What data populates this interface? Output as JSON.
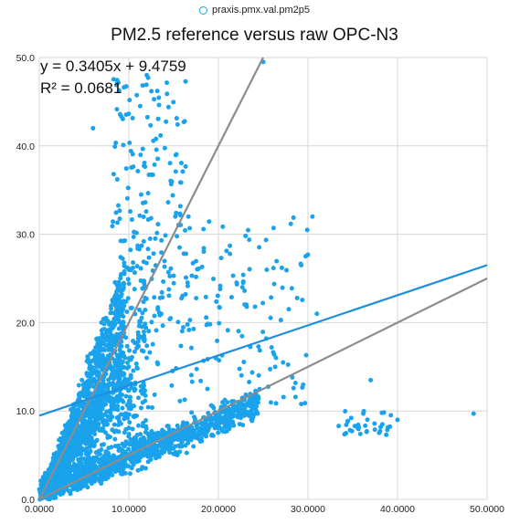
{
  "legend": {
    "label": "praxis.pmx.val.pm2p5"
  },
  "colors": {
    "points": "#1aa3ec",
    "fit_line": "#1e8fe0",
    "reference_lines": "#8c8c8c",
    "grid": "#d6d6d6"
  },
  "chart_data": {
    "type": "scatter",
    "title": "PM2.5 reference versus raw OPC-N3",
    "xlabel": "",
    "ylabel": "",
    "xlim": [
      0,
      50
    ],
    "ylim": [
      0,
      50
    ],
    "x_ticks": [
      "0.0000",
      "10.0000",
      "20.0000",
      "30.0000",
      "40.0000",
      "50.0000"
    ],
    "y_ticks": [
      "0.0",
      "10.0",
      "20.0",
      "30.0",
      "40.0",
      "50.0"
    ],
    "grid": true,
    "legend_position": "top-center",
    "series": [
      {
        "name": "praxis.pmx.val.pm2p5",
        "point_count_approx": 3000,
        "clusters": [
          {
            "x_range": [
              0,
              10
            ],
            "y_range": [
              0,
              22
            ],
            "description": "dense steep cloud, y ≈ 2.2x"
          },
          {
            "x_range": [
              2,
              25
            ],
            "y_range": [
              1,
              12
            ],
            "description": "dense shallow band, y ≈ 0.45x + 1"
          },
          {
            "x_range": [
              8,
              17
            ],
            "y_range": [
              20,
              48
            ],
            "description": "steep upper branch"
          },
          {
            "x_range": [
              10,
              30
            ],
            "y_range": [
              10,
              35
            ],
            "description": "scattered upper points"
          },
          {
            "x_range": [
              33,
              40
            ],
            "y_range": [
              7,
              10
            ],
            "description": "isolated group near x 35"
          }
        ],
        "sample_points": [
          {
            "x": 6.0,
            "y": 42.0
          },
          {
            "x": 12.0,
            "y": 48.0
          },
          {
            "x": 25.0,
            "y": 49.5
          },
          {
            "x": 37.0,
            "y": 13.5
          },
          {
            "x": 48.5,
            "y": 9.7
          },
          {
            "x": 30.5,
            "y": 32.0
          },
          {
            "x": 31.0,
            "y": 21.0
          },
          {
            "x": 40.0,
            "y": 9.0
          }
        ]
      }
    ],
    "trendline": {
      "slope": 0.3405,
      "intercept": 9.4759,
      "equation": "y = 0.3405x + 9.4759",
      "r_squared": "R² = 0.0681"
    },
    "reference_lines": [
      {
        "points": [
          [
            0,
            0
          ],
          [
            25,
            50
          ]
        ]
      },
      {
        "points": [
          [
            0,
            0
          ],
          [
            50,
            25
          ]
        ]
      }
    ]
  }
}
